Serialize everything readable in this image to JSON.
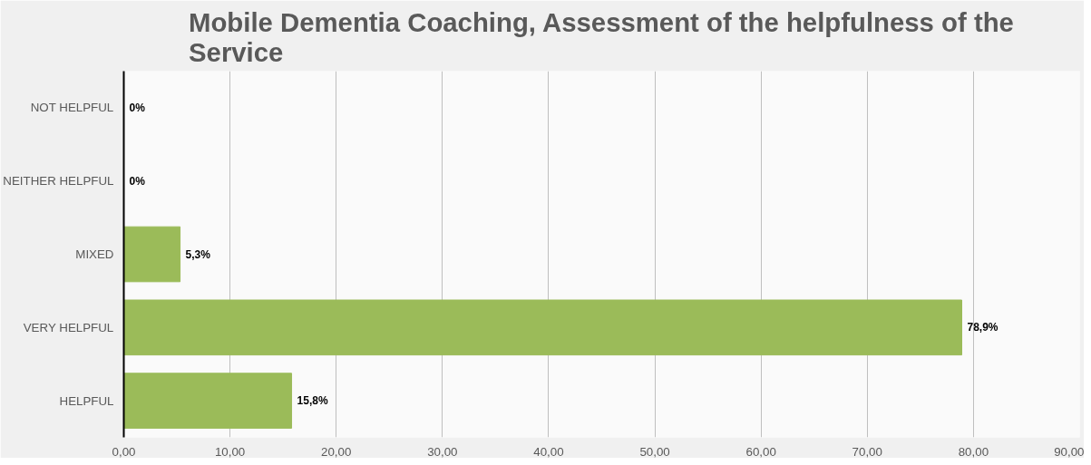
{
  "chart_data": {
    "type": "bar",
    "orientation": "horizontal",
    "title": "Mobile Dementia Coaching, Assessment of the helpfulness of the Service",
    "categories": [
      "NOT HELPFUL",
      "NEITHER HELPFUL",
      "MIXED",
      "VERY HELPFUL",
      "HELPFUL"
    ],
    "values": [
      0,
      0,
      5.3,
      78.9,
      15.8
    ],
    "value_labels": [
      "0%",
      "0%",
      "5,3%",
      "78,9%",
      "15,8%"
    ],
    "color": "#9bbb59",
    "xlim": [
      0,
      90
    ],
    "xticks": [
      {
        "value": 0,
        "label": "0,00"
      },
      {
        "value": 10,
        "label": "10,00"
      },
      {
        "value": 20,
        "label": "20,00"
      },
      {
        "value": 30,
        "label": "30,00"
      },
      {
        "value": 40,
        "label": "40,00"
      },
      {
        "value": 50,
        "label": "50,00"
      },
      {
        "value": 60,
        "label": "60,00"
      },
      {
        "value": 70,
        "label": "70,00"
      },
      {
        "value": 80,
        "label": "80,00"
      },
      {
        "value": 90,
        "label": "90,00"
      }
    ],
    "grid": "x"
  }
}
